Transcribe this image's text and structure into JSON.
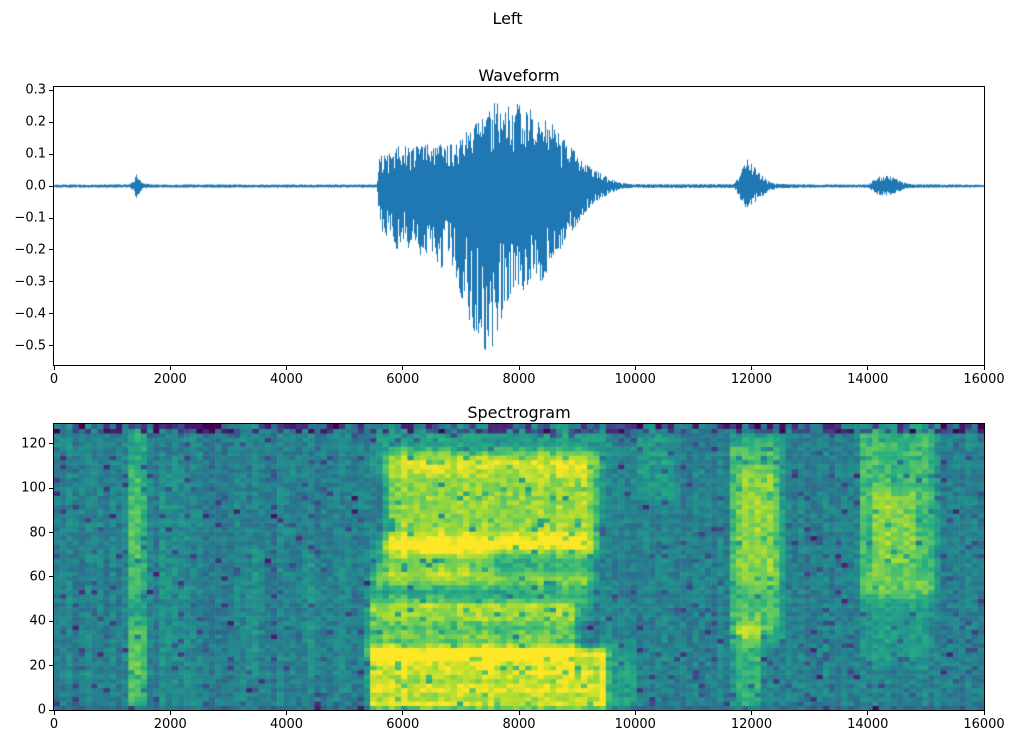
{
  "figure": {
    "suptitle": "Left",
    "background": "#ffffff"
  },
  "chart_data": [
    {
      "type": "line",
      "title": "Waveform",
      "xlabel": "",
      "ylabel": "",
      "xlim": [
        0,
        16000
      ],
      "ylim": [
        -0.56,
        0.31
      ],
      "line_color": "#1f77b4",
      "grid": false,
      "xticks": [
        {
          "v": 0,
          "label": "0"
        },
        {
          "v": 2000,
          "label": "2000"
        },
        {
          "v": 4000,
          "label": "4000"
        },
        {
          "v": 6000,
          "label": "6000"
        },
        {
          "v": 8000,
          "label": "8000"
        },
        {
          "v": 10000,
          "label": "10000"
        },
        {
          "v": 12000,
          "label": "12000"
        },
        {
          "v": 14000,
          "label": "14000"
        },
        {
          "v": 16000,
          "label": "16000"
        }
      ],
      "yticks": [
        {
          "v": 0.3,
          "label": "0.3"
        },
        {
          "v": 0.2,
          "label": "0.2"
        },
        {
          "v": 0.1,
          "label": "0.1"
        },
        {
          "v": 0.0,
          "label": "0.0"
        },
        {
          "v": -0.1,
          "label": "−0.1"
        },
        {
          "v": -0.2,
          "label": "−0.2"
        },
        {
          "v": -0.3,
          "label": "−0.3"
        },
        {
          "v": -0.4,
          "label": "−0.4"
        },
        {
          "v": -0.5,
          "label": "−0.5"
        }
      ],
      "envelope": [
        [
          0,
          0.005,
          -0.005
        ],
        [
          1300,
          0.005,
          -0.005
        ],
        [
          1370,
          0.015,
          -0.015
        ],
        [
          1420,
          0.038,
          -0.042
        ],
        [
          1470,
          0.025,
          -0.025
        ],
        [
          1540,
          0.008,
          -0.008
        ],
        [
          1700,
          0.005,
          -0.005
        ],
        [
          5550,
          0.005,
          -0.005
        ],
        [
          5600,
          0.09,
          -0.11
        ],
        [
          5700,
          0.12,
          -0.18
        ],
        [
          5800,
          0.1,
          -0.14
        ],
        [
          5900,
          0.13,
          -0.2
        ],
        [
          6000,
          0.11,
          -0.16
        ],
        [
          6100,
          0.14,
          -0.22
        ],
        [
          6200,
          0.12,
          -0.17
        ],
        [
          6350,
          0.14,
          -0.24
        ],
        [
          6500,
          0.12,
          -0.2
        ],
        [
          6650,
          0.14,
          -0.26
        ],
        [
          6800,
          0.13,
          -0.22
        ],
        [
          6950,
          0.13,
          -0.3
        ],
        [
          7050,
          0.16,
          -0.38
        ],
        [
          7150,
          0.18,
          -0.42
        ],
        [
          7300,
          0.2,
          -0.48
        ],
        [
          7450,
          0.22,
          -0.52
        ],
        [
          7550,
          0.27,
          -0.5
        ],
        [
          7650,
          0.26,
          -0.44
        ],
        [
          7800,
          0.25,
          -0.36
        ],
        [
          7950,
          0.26,
          -0.3
        ],
        [
          8100,
          0.24,
          -0.33
        ],
        [
          8250,
          0.25,
          -0.28
        ],
        [
          8400,
          0.22,
          -0.3
        ],
        [
          8550,
          0.2,
          -0.24
        ],
        [
          8700,
          0.16,
          -0.2
        ],
        [
          8850,
          0.13,
          -0.16
        ],
        [
          9000,
          0.1,
          -0.12
        ],
        [
          9150,
          0.07,
          -0.08
        ],
        [
          9300,
          0.05,
          -0.05
        ],
        [
          9450,
          0.035,
          -0.035
        ],
        [
          9600,
          0.02,
          -0.02
        ],
        [
          9750,
          0.01,
          -0.01
        ],
        [
          10000,
          0.006,
          -0.006
        ],
        [
          11700,
          0.006,
          -0.006
        ],
        [
          11780,
          0.03,
          -0.03
        ],
        [
          11850,
          0.06,
          -0.055
        ],
        [
          11930,
          0.09,
          -0.075
        ],
        [
          12010,
          0.07,
          -0.06
        ],
        [
          12100,
          0.05,
          -0.045
        ],
        [
          12200,
          0.03,
          -0.03
        ],
        [
          12300,
          0.015,
          -0.015
        ],
        [
          12450,
          0.007,
          -0.007
        ],
        [
          13000,
          0.005,
          -0.005
        ],
        [
          14020,
          0.005,
          -0.005
        ],
        [
          14100,
          0.02,
          -0.02
        ],
        [
          14200,
          0.03,
          -0.028
        ],
        [
          14300,
          0.032,
          -0.03
        ],
        [
          14400,
          0.03,
          -0.028
        ],
        [
          14500,
          0.022,
          -0.02
        ],
        [
          14600,
          0.012,
          -0.012
        ],
        [
          14750,
          0.006,
          -0.006
        ],
        [
          16000,
          0.004,
          -0.004
        ]
      ]
    },
    {
      "type": "heatmap",
      "title": "Spectrogram",
      "xlabel": "",
      "ylabel": "",
      "colormap": "viridis",
      "xlim": [
        0,
        16000
      ],
      "ylim": [
        0,
        129
      ],
      "n_time": 150,
      "n_freq_bins": 64,
      "base": 0.44,
      "noise": 0.16,
      "column_noise": 0.06,
      "speckle_chance": 0.06,
      "harmonics": {
        "x": [
          5480,
          9450
        ],
        "y_max": 48,
        "amp": 0.045,
        "freq": 0.8
      },
      "xticks": [
        {
          "v": 0,
          "label": "0"
        },
        {
          "v": 2000,
          "label": "2000"
        },
        {
          "v": 4000,
          "label": "4000"
        },
        {
          "v": 6000,
          "label": "6000"
        },
        {
          "v": 8000,
          "label": "8000"
        },
        {
          "v": 10000,
          "label": "10000"
        },
        {
          "v": 12000,
          "label": "12000"
        },
        {
          "v": 14000,
          "label": "14000"
        },
        {
          "v": 16000,
          "label": "16000"
        }
      ],
      "yticks": [
        {
          "v": 0,
          "label": "0"
        },
        {
          "v": 20,
          "label": "20"
        },
        {
          "v": 40,
          "label": "40"
        },
        {
          "v": 60,
          "label": "60"
        },
        {
          "v": 80,
          "label": "80"
        },
        {
          "v": 100,
          "label": "100"
        },
        {
          "v": 120,
          "label": "120"
        }
      ],
      "events": [
        {
          "x": [
            1270,
            1540
          ],
          "y": [
            4,
            126
          ],
          "v": 0.18,
          "fx": 60,
          "fy": 10
        },
        {
          "x": [
            1290,
            1520
          ],
          "y": [
            8,
            36
          ],
          "v": 0.14,
          "fx": 60,
          "fy": 8
        },
        {
          "x": [
            1290,
            1520
          ],
          "y": [
            58,
            102
          ],
          "v": 0.12,
          "fx": 60,
          "fy": 10
        },
        {
          "x": [
            1850,
            2050
          ],
          "y": [
            10,
            105
          ],
          "v": 0.07,
          "fx": 80,
          "fy": 15
        },
        {
          "x": [
            3350,
            3500
          ],
          "y": [
            15,
            70
          ],
          "v": 0.05,
          "fx": 80,
          "fy": 12
        },
        {
          "x": [
            4350,
            4550
          ],
          "y": [
            25,
            65
          ],
          "v": 0.05,
          "fx": 80,
          "fy": 12
        },
        {
          "x": [
            5480,
            9450
          ],
          "y": [
            2,
            26
          ],
          "v": 0.48,
          "fx": 120,
          "fy": 5
        },
        {
          "x": [
            5480,
            8900
          ],
          "y": [
            26,
            46
          ],
          "v": 0.32,
          "fx": 150,
          "fy": 6
        },
        {
          "x": [
            5550,
            9250
          ],
          "y": [
            46,
            62
          ],
          "v": 0.18,
          "fx": 150,
          "fy": 6
        },
        {
          "x": [
            5650,
            9150
          ],
          "y": [
            60,
            76
          ],
          "v": 0.26,
          "fx": 200,
          "fy": 6
        },
        {
          "x": [
            5850,
            9250
          ],
          "y": [
            74,
            112
          ],
          "v": 0.4,
          "fx": 250,
          "fy": 8
        },
        {
          "x": [
            5600,
            9400
          ],
          "y": [
            110,
            124
          ],
          "v": 0.12,
          "fx": 200,
          "fy": 6
        },
        {
          "x": [
            7600,
            9100
          ],
          "y": [
            62,
            72
          ],
          "v": -0.14,
          "fx": 200,
          "fy": 4
        },
        {
          "x": [
            9450,
            9950
          ],
          "y": [
            2,
            28
          ],
          "v": 0.12,
          "fx": 150,
          "fy": 6
        },
        {
          "x": [
            10050,
            10650
          ],
          "y": [
            98,
            122
          ],
          "v": 0.1,
          "fx": 120,
          "fy": 8
        },
        {
          "x": [
            11680,
            12480
          ],
          "y": [
            36,
            118
          ],
          "v": 0.26,
          "fx": 100,
          "fy": 10
        },
        {
          "x": [
            11720,
            12150
          ],
          "y": [
            4,
            36
          ],
          "v": 0.2,
          "fx": 80,
          "fy": 8
        },
        {
          "x": [
            11800,
            12400
          ],
          "y": [
            62,
            104
          ],
          "v": 0.12,
          "fx": 100,
          "fy": 10
        },
        {
          "x": [
            13920,
            15120
          ],
          "y": [
            56,
            122
          ],
          "v": 0.24,
          "fx": 120,
          "fy": 10
        },
        {
          "x": [
            14150,
            14750
          ],
          "y": [
            68,
            96
          ],
          "v": 0.14,
          "fx": 120,
          "fy": 8
        },
        {
          "x": [
            13980,
            15050
          ],
          "y": [
            26,
            56
          ],
          "v": 0.1,
          "fx": 150,
          "fy": 10
        }
      ]
    }
  ]
}
